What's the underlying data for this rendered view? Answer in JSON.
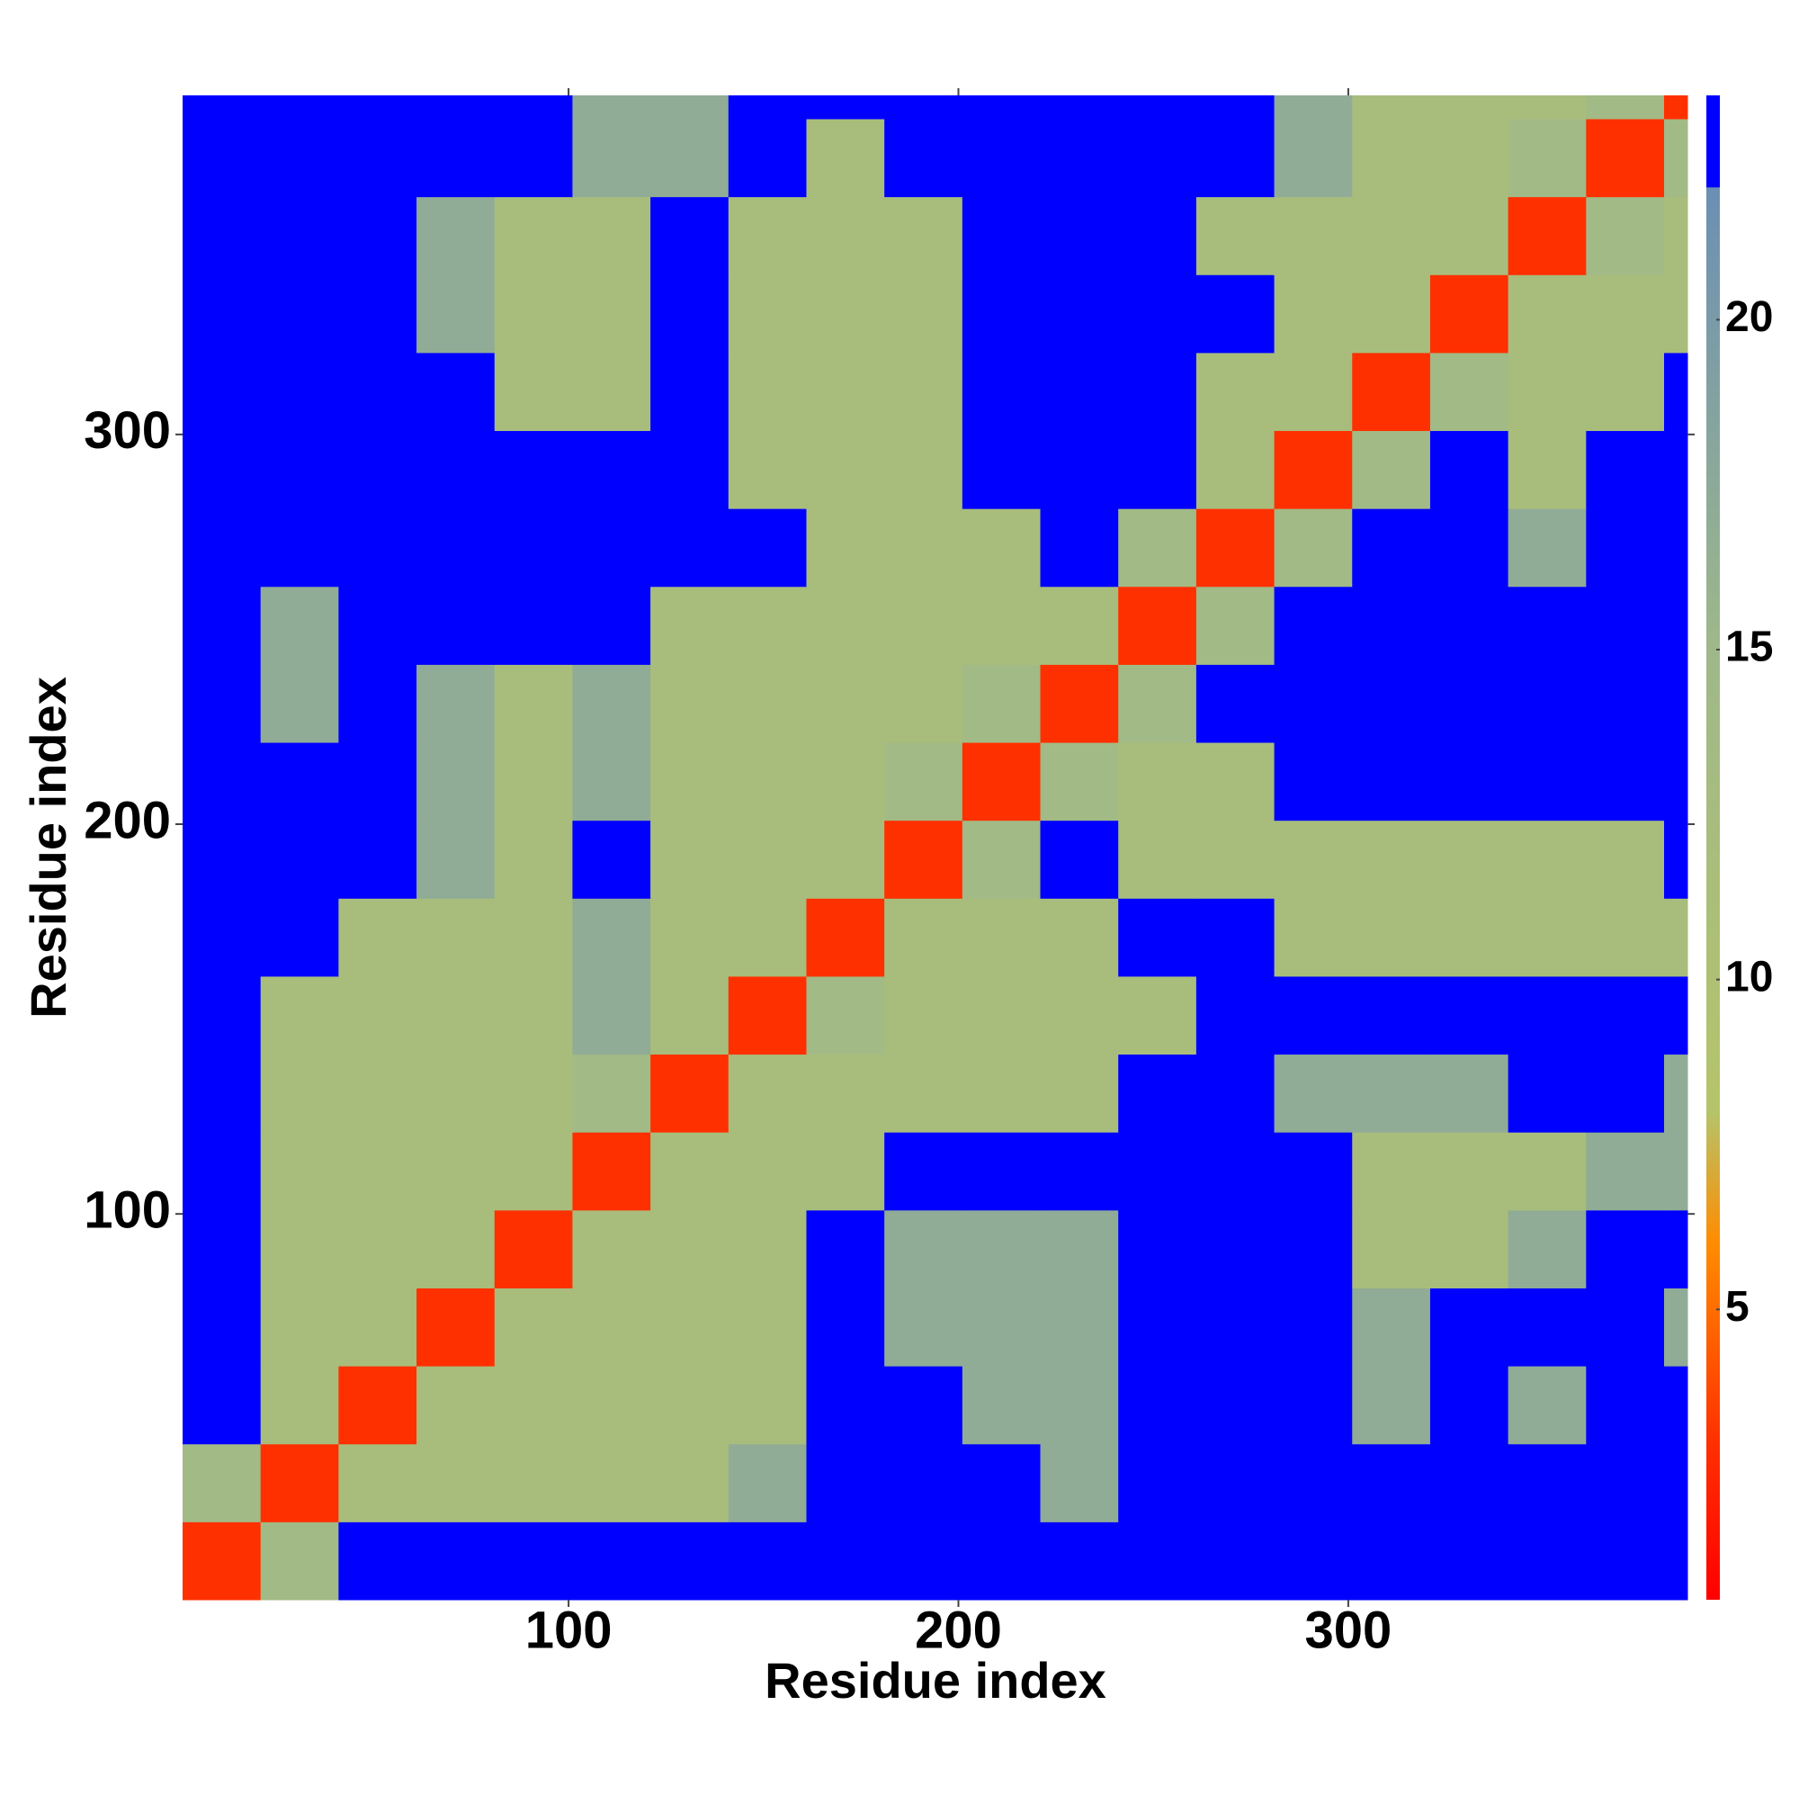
{
  "chart_data": {
    "type": "heatmap",
    "xlabel": "Residue index",
    "ylabel": "Residue index",
    "xlim": [
      1,
      387
    ],
    "ylim": [
      1,
      387
    ],
    "xticks": [
      100,
      200,
      300
    ],
    "yticks": [
      100,
      200,
      300
    ],
    "xbins": [
      1,
      21,
      41,
      61,
      81,
      101,
      121,
      141,
      161,
      181,
      201,
      221,
      241,
      261,
      281,
      301,
      321,
      341,
      361,
      381,
      387
    ],
    "ybins": [
      1,
      21,
      41,
      61,
      81,
      101,
      121,
      141,
      161,
      181,
      201,
      221,
      241,
      261,
      281,
      301,
      321,
      341,
      361,
      381,
      387
    ],
    "values": [
      [
        3,
        14,
        23,
        23,
        23,
        23,
        23,
        23,
        23,
        23,
        23,
        23,
        23,
        23,
        23,
        23,
        23,
        23,
        23,
        23
      ],
      [
        14,
        3,
        12,
        12,
        12,
        12,
        12,
        17,
        23,
        23,
        23,
        17,
        23,
        23,
        23,
        23,
        23,
        23,
        23,
        23
      ],
      [
        23,
        12,
        3,
        12,
        12,
        12,
        12,
        12,
        23,
        23,
        17,
        17,
        23,
        23,
        23,
        17,
        23,
        17,
        23,
        23
      ],
      [
        23,
        12,
        12,
        3,
        12,
        12,
        12,
        12,
        23,
        17,
        17,
        17,
        23,
        23,
        23,
        17,
        23,
        23,
        23,
        17
      ],
      [
        23,
        12,
        12,
        12,
        3,
        12,
        12,
        12,
        23,
        17,
        17,
        17,
        23,
        23,
        23,
        12,
        12,
        17,
        23,
        23
      ],
      [
        23,
        12,
        12,
        12,
        12,
        3,
        12,
        12,
        12,
        23,
        23,
        23,
        23,
        23,
        23,
        12,
        12,
        12,
        17,
        17
      ],
      [
        23,
        12,
        12,
        12,
        12,
        14,
        3,
        12,
        12,
        12,
        12,
        12,
        23,
        23,
        17,
        17,
        17,
        23,
        23,
        17
      ],
      [
        23,
        12,
        12,
        12,
        12,
        17,
        12,
        3,
        14,
        12,
        12,
        12,
        12,
        23,
        23,
        23,
        23,
        23,
        23,
        23
      ],
      [
        23,
        23,
        12,
        12,
        12,
        17,
        12,
        12,
        3,
        12,
        12,
        12,
        23,
        23,
        12,
        12,
        12,
        12,
        12,
        12
      ],
      [
        23,
        23,
        23,
        17,
        12,
        23,
        12,
        12,
        12,
        3,
        14,
        23,
        12,
        12,
        12,
        12,
        12,
        12,
        12,
        23
      ],
      [
        23,
        23,
        23,
        17,
        12,
        17,
        12,
        12,
        12,
        14,
        3,
        14,
        12,
        12,
        23,
        23,
        23,
        23,
        23,
        23
      ],
      [
        23,
        17,
        23,
        17,
        12,
        17,
        12,
        12,
        12,
        12,
        14,
        3,
        14,
        23,
        23,
        23,
        23,
        23,
        23,
        23
      ],
      [
        23,
        17,
        23,
        23,
        23,
        23,
        12,
        12,
        12,
        12,
        12,
        12,
        3,
        14,
        23,
        23,
        23,
        23,
        23,
        23
      ],
      [
        23,
        23,
        23,
        23,
        23,
        23,
        23,
        23,
        12,
        12,
        12,
        23,
        14,
        3,
        14,
        23,
        23,
        17,
        23,
        23
      ],
      [
        23,
        23,
        23,
        23,
        23,
        23,
        23,
        12,
        12,
        12,
        23,
        23,
        23,
        12,
        3,
        14,
        23,
        12,
        23,
        23
      ],
      [
        23,
        23,
        23,
        23,
        12,
        12,
        23,
        12,
        12,
        12,
        23,
        23,
        23,
        12,
        12,
        3,
        14,
        12,
        12,
        23
      ],
      [
        23,
        23,
        23,
        17,
        12,
        12,
        23,
        12,
        12,
        12,
        23,
        23,
        23,
        23,
        12,
        12,
        3,
        12,
        12,
        12
      ],
      [
        23,
        23,
        23,
        17,
        12,
        12,
        23,
        12,
        12,
        12,
        23,
        23,
        23,
        12,
        12,
        12,
        12,
        3,
        14,
        12
      ],
      [
        23,
        23,
        23,
        23,
        23,
        17,
        17,
        23,
        12,
        23,
        23,
        23,
        23,
        23,
        17,
        12,
        12,
        14,
        3,
        14
      ],
      [
        23,
        23,
        23,
        23,
        23,
        17,
        17,
        23,
        23,
        23,
        23,
        23,
        23,
        23,
        17,
        12,
        12,
        12,
        14,
        3
      ]
    ],
    "zlim": [
      0.6,
      23.4
    ],
    "zticks": [
      5,
      10,
      15,
      20
    ],
    "colorscale": [
      [
        0.6,
        "#ff0000"
      ],
      [
        3,
        "#ff3000"
      ],
      [
        6,
        "#ff8c00"
      ],
      [
        8,
        "#b5c46a"
      ],
      [
        15,
        "#9fb88a"
      ],
      [
        22,
        "#6b8fb4"
      ],
      [
        22.01,
        "#0000ff"
      ],
      [
        23.4,
        "#0000ff"
      ]
    ]
  }
}
